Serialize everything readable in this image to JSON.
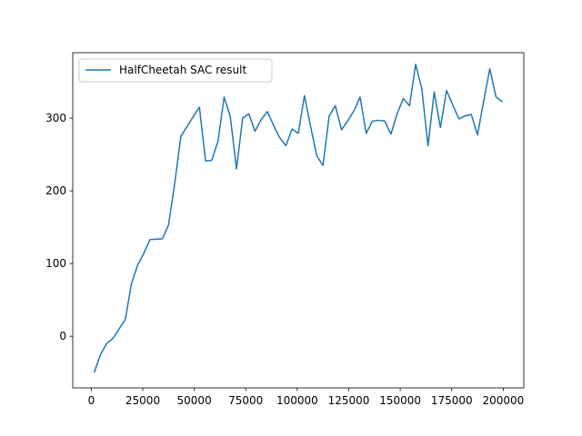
{
  "chart_data": {
    "type": "line",
    "title": "",
    "xlabel": "",
    "ylabel": "",
    "xlim": [
      -9000,
      210000
    ],
    "ylim": [
      -71,
      390
    ],
    "xticks": [
      0,
      25000,
      50000,
      75000,
      100000,
      125000,
      150000,
      175000,
      200000
    ],
    "yticks": [
      0,
      100,
      200,
      300
    ],
    "grid": false,
    "legend_position": "top-left",
    "series": [
      {
        "name": "HalfCheetah SAC result",
        "color": "#1f77b4",
        "points": [
          [
            1500,
            -49
          ],
          [
            4500,
            -25
          ],
          [
            7500,
            -10
          ],
          [
            10500,
            -3
          ],
          [
            16500,
            23
          ],
          [
            19500,
            72
          ],
          [
            22500,
            98
          ],
          [
            25500,
            114
          ],
          [
            28500,
            133
          ],
          [
            34500,
            134
          ],
          [
            37500,
            153
          ],
          [
            40500,
            210
          ],
          [
            43500,
            275
          ],
          [
            49500,
            302
          ],
          [
            52500,
            315
          ],
          [
            55500,
            241
          ],
          [
            58500,
            242
          ],
          [
            61500,
            268
          ],
          [
            64500,
            329
          ],
          [
            67500,
            302
          ],
          [
            70500,
            230
          ],
          [
            73500,
            300
          ],
          [
            76500,
            306
          ],
          [
            79500,
            282
          ],
          [
            82500,
            298
          ],
          [
            85500,
            309
          ],
          [
            88500,
            290
          ],
          [
            91500,
            273
          ],
          [
            94500,
            262
          ],
          [
            97500,
            285
          ],
          [
            100500,
            279
          ],
          [
            103500,
            331
          ],
          [
            106500,
            288
          ],
          [
            109500,
            248
          ],
          [
            112500,
            235
          ],
          [
            115500,
            303
          ],
          [
            118500,
            317
          ],
          [
            121500,
            284
          ],
          [
            124500,
            296
          ],
          [
            127500,
            310
          ],
          [
            130500,
            329
          ],
          [
            133500,
            279
          ],
          [
            136500,
            296
          ],
          [
            139500,
            297
          ],
          [
            142500,
            296
          ],
          [
            145500,
            278
          ],
          [
            148500,
            306
          ],
          [
            151500,
            327
          ],
          [
            154500,
            317
          ],
          [
            157500,
            374
          ],
          [
            160500,
            340
          ],
          [
            163500,
            262
          ],
          [
            166500,
            336
          ],
          [
            169500,
            287
          ],
          [
            172500,
            338
          ],
          [
            175500,
            318
          ],
          [
            178500,
            299
          ],
          [
            181500,
            303
          ],
          [
            184500,
            305
          ],
          [
            187500,
            277
          ],
          [
            190500,
            323
          ],
          [
            193500,
            368
          ],
          [
            196500,
            329
          ],
          [
            199500,
            323
          ]
        ]
      }
    ]
  }
}
